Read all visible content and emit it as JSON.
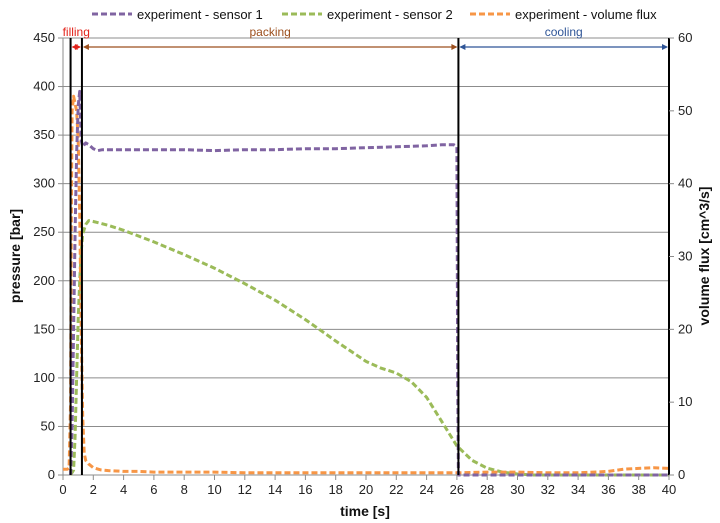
{
  "chart_data": {
    "type": "line",
    "xlabel": "time  [s]",
    "ylabel": "pressure  [bar]",
    "y2label": "volume flux  [cm^3/s]",
    "xlim": [
      0,
      40
    ],
    "ylim": [
      0,
      450
    ],
    "y2lim": [
      0,
      60
    ],
    "xticks": [
      0,
      2,
      4,
      6,
      8,
      10,
      12,
      14,
      16,
      18,
      20,
      22,
      24,
      26,
      28,
      30,
      32,
      34,
      36,
      38,
      40
    ],
    "yticks": [
      0,
      50,
      100,
      150,
      200,
      250,
      300,
      350,
      400,
      450
    ],
    "y2ticks": [
      0,
      10,
      20,
      30,
      40,
      50,
      60
    ],
    "grid": "horizontal",
    "legend": "top",
    "series": [
      {
        "name": "experiment - sensor 1",
        "color": "#8064a2",
        "axis": "left",
        "x": [
          0.5,
          0.6,
          0.7,
          0.8,
          0.9,
          1.0,
          1.1,
          1.2,
          1.3,
          1.5,
          1.7,
          2.0,
          2.3,
          2.6,
          3,
          4,
          5,
          6,
          8,
          10,
          12,
          14,
          16,
          18,
          20,
          22,
          24,
          25,
          25.8,
          26.0,
          26.05,
          26.1,
          40
        ],
        "y": [
          0,
          50,
          150,
          250,
          330,
          380,
          395,
          345,
          338,
          342,
          340,
          336,
          334,
          335,
          335,
          335,
          335,
          335,
          335,
          334,
          335,
          335,
          336,
          336,
          337,
          338,
          339,
          340,
          340,
          338,
          100,
          0,
          0
        ]
      },
      {
        "name": "experiment - sensor 2",
        "color": "#9bbb59",
        "axis": "left",
        "x": [
          0.5,
          0.7,
          0.8,
          0.9,
          1.0,
          1.1,
          1.2,
          1.3,
          1.5,
          1.7,
          2.0,
          3,
          4,
          6,
          8,
          10,
          12,
          14,
          16,
          18,
          20,
          21,
          22,
          23,
          24,
          25,
          26,
          27,
          28,
          29,
          30,
          31,
          32,
          33,
          34,
          35,
          36,
          38,
          40
        ],
        "y": [
          0,
          5,
          40,
          100,
          160,
          200,
          230,
          248,
          258,
          262,
          261,
          257,
          252,
          240,
          227,
          213,
          197,
          180,
          160,
          138,
          117,
          110,
          105,
          96,
          80,
          55,
          30,
          15,
          7,
          3,
          1,
          0,
          0,
          0,
          0,
          0,
          0,
          0,
          0
        ]
      },
      {
        "name": "experiment - volume flux",
        "color": "#f79646",
        "axis": "right",
        "x": [
          0,
          0.3,
          0.4,
          0.5,
          0.55,
          0.6,
          0.7,
          0.8,
          0.9,
          1.0,
          1.1,
          1.2,
          1.3,
          1.4,
          1.5,
          1.7,
          2.0,
          2.5,
          3,
          4,
          5,
          6,
          8,
          10,
          12,
          14,
          16,
          18,
          20,
          22,
          24,
          26,
          28,
          30,
          32,
          34,
          35,
          36,
          37,
          38,
          39,
          40
        ],
        "y": [
          0.8,
          0.8,
          1,
          10,
          35,
          50,
          52,
          51,
          50,
          46,
          36,
          20,
          8,
          3,
          2,
          1.5,
          1,
          0.7,
          0.6,
          0.5,
          0.5,
          0.4,
          0.4,
          0.4,
          0.3,
          0.3,
          0.3,
          0.3,
          0.3,
          0.3,
          0.3,
          0.3,
          0.4,
          0.4,
          0.3,
          0.3,
          0.4,
          0.5,
          0.8,
          0.9,
          1.0,
          0.9
        ]
      }
    ],
    "phases": [
      {
        "label": "filling",
        "start": 0.5,
        "end": 1.25,
        "color": "#e2231a"
      },
      {
        "label": "packing",
        "start": 1.25,
        "end": 26.1,
        "color": "#9c4f1d"
      },
      {
        "label": "cooling",
        "start": 26.1,
        "end": 40,
        "color": "#2f5597"
      }
    ]
  }
}
